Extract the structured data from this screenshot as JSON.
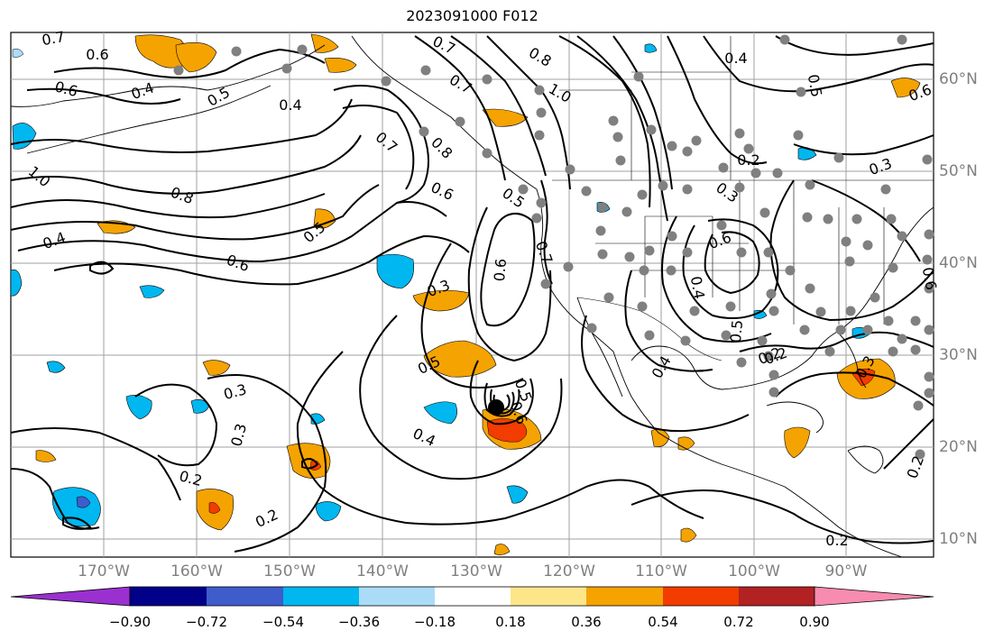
{
  "title": "2023091000 F012",
  "map": {
    "lon_labels": [
      "170°W",
      "160°W",
      "150°W",
      "140°W",
      "130°W",
      "120°W",
      "110°W",
      "100°W",
      "90°W"
    ],
    "lat_labels": [
      "60°N",
      "50°N",
      "40°N",
      "30°N",
      "20°N",
      "10°N"
    ],
    "contour_labels": [
      "0.7",
      "0.6",
      "0.6",
      "0.4",
      "0.5",
      "0.4",
      "1.0",
      "0.8",
      "0.4",
      "0.6",
      "0.7",
      "0.7",
      "0.8",
      "0.8",
      "1.0",
      "0.4",
      "0.2",
      "0.3",
      "0.3",
      "0.6",
      "0.6",
      "0.5",
      "0.6",
      "0.7",
      "0.5",
      "0.3",
      "0.6",
      "0.4",
      "0.5",
      "0.5",
      "0.2",
      "0.3",
      "0.4",
      "0.5",
      "0.3",
      "0.3",
      "0.2",
      "0.2",
      "0.2",
      "0.2",
      "0.6",
      "0.7",
      "0.4",
      "0.2",
      "0.5",
      "0.6"
    ],
    "colors": {
      "grid": "#a0a0a0",
      "contour": "#000000",
      "station": "#808080",
      "pos_fill": "#f5a300",
      "pos_strong": "#f23c00",
      "neg_fill": "#00b7f0",
      "neg_weak": "#aadcf8",
      "neg_strong": "#3e5ccc"
    }
  },
  "colorbar": {
    "colors": [
      "#9b30d0",
      "#000088",
      "#3e5ccc",
      "#00b7f0",
      "#aadcf8",
      "#ffffff",
      "#fde68a",
      "#f5a300",
      "#f23c00",
      "#b22222",
      "#f78bb0"
    ],
    "ticks": [
      "−0.90",
      "−0.72",
      "−0.54",
      "−0.36",
      "−0.18",
      "0.18",
      "0.36",
      "0.54",
      "0.72",
      "0.90"
    ]
  }
}
